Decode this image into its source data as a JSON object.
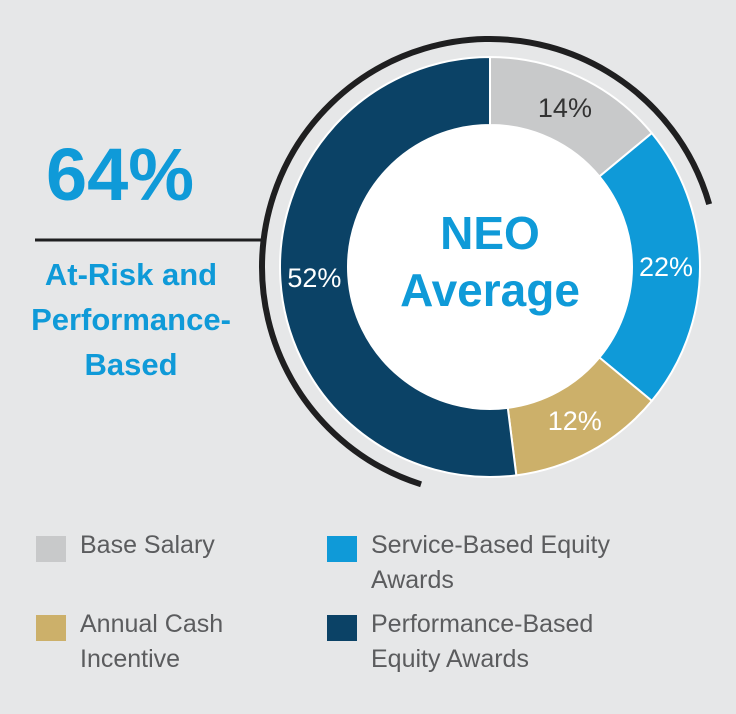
{
  "colors": {
    "base_salary": "#c8c9ca",
    "service_equity": "#0f9ad8",
    "annual_cash": "#ccb06a",
    "performance_equity": "#0b4266",
    "accent": "#0f9ad8",
    "arc": "#1f1f20"
  },
  "headline": {
    "percent": "64%",
    "label": "At-Risk and Performance-Based"
  },
  "center_label": "NEO Average",
  "chart_data": {
    "type": "pie",
    "title": "NEO Average",
    "slices": [
      {
        "name": "Base Salary",
        "value": 14,
        "label": "14%"
      },
      {
        "name": "Service-Based Equity Awards",
        "value": 22,
        "label": "22%"
      },
      {
        "name": "Annual Cash Incentive",
        "value": 12,
        "label": "12%"
      },
      {
        "name": "Performance-Based Equity Awards",
        "value": 52,
        "label": "52%"
      }
    ],
    "highlight_arc": {
      "description": "At-Risk and Performance-Based",
      "value": 64
    },
    "legend": [
      "Base Salary",
      "Service-Based Equity Awards",
      "Annual Cash Incentive",
      "Performance-Based Equity Awards"
    ]
  }
}
